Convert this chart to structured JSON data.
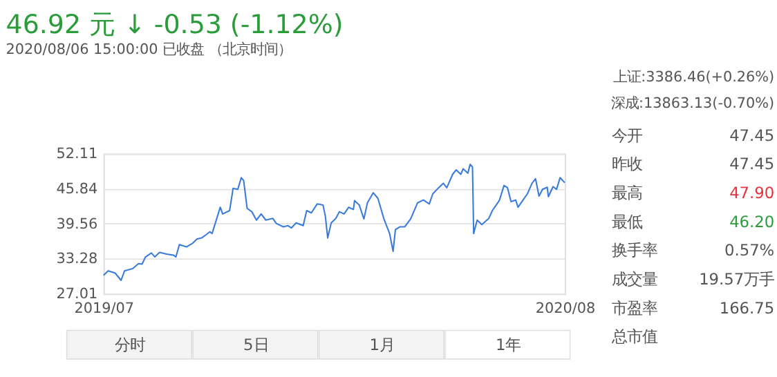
{
  "chart_data": {
    "type": "line",
    "title": "46.92 元 ↓ -0.53 (-1.12%)",
    "subtitle": "2020/08/06 15:00:00  已收盘 （北京时间）",
    "annotations": [
      "上证:3386.46(+0.26%)",
      "深成:13863.13(-0.70%)",
      "今开",
      "47.45",
      "昨收",
      "47.45",
      "最高",
      "47.90",
      "最低",
      "46.20",
      "换手率",
      "0.57%",
      "成交量",
      "19.57万手",
      "市盈率",
      "166.75",
      "总市值",
      "分时",
      "5日",
      "1月",
      "1年"
    ],
    "x": [
      "2019-07-08",
      "2019-07-12",
      "2019-07-18",
      "2019-07-23",
      "2019-07-26",
      "2019-08-02",
      "2019-08-07",
      "2019-08-10",
      "2019-08-13",
      "2019-08-18",
      "2019-08-21",
      "2019-08-25",
      "2019-08-31",
      "2019-09-06",
      "2019-09-08",
      "2019-09-11",
      "2019-09-17",
      "2019-09-22",
      "2019-09-26",
      "2019-09-30",
      "2019-10-04",
      "2019-10-07",
      "2019-10-09",
      "2019-10-13",
      "2019-10-16",
      "2019-10-18",
      "2019-10-24",
      "2019-10-27",
      "2019-10-31",
      "2019-11-03",
      "2019-11-05",
      "2019-11-08",
      "2019-11-12",
      "2019-11-16",
      "2019-11-20",
      "2019-11-24",
      "2019-11-30",
      "2019-12-03",
      "2019-12-09",
      "2019-12-13",
      "2019-12-16",
      "2019-12-20",
      "2019-12-26",
      "2019-12-29",
      "2020-01-02",
      "2020-01-07",
      "2020-01-12",
      "2020-01-14",
      "2020-01-16",
      "2020-01-19",
      "2020-01-23",
      "2020-01-26",
      "2020-01-30",
      "2020-02-03",
      "2020-02-07",
      "2020-02-08",
      "2020-02-12",
      "2020-02-16",
      "2020-02-19",
      "2020-02-24",
      "2020-02-28",
      "2020-03-04",
      "2020-03-09",
      "2020-03-12",
      "2020-03-14",
      "2020-03-18",
      "2020-03-22",
      "2020-03-27",
      "2020-04-02",
      "2020-04-07",
      "2020-04-12",
      "2020-04-15",
      "2020-04-20",
      "2020-04-24",
      "2020-04-27",
      "2020-05-02",
      "2020-05-05",
      "2020-05-09",
      "2020-05-11",
      "2020-05-15",
      "2020-05-17",
      "2020-05-19",
      "2020-05-20",
      "2020-05-23",
      "2020-05-27",
      "2020-06-02",
      "2020-06-05",
      "2020-06-11",
      "2020-06-15",
      "2020-06-18",
      "2020-06-21",
      "2020-06-25",
      "2020-06-27",
      "2020-07-01",
      "2020-07-05",
      "2020-07-09",
      "2020-07-12",
      "2020-07-15",
      "2020-07-18",
      "2020-07-22",
      "2020-07-23",
      "2020-07-27",
      "2020-07-30",
      "2020-08-02",
      "2020-08-06"
    ],
    "series": [
      {
        "color": "#3a7bdc",
        "values": [
          30.3,
          31.1,
          30.7,
          29.4,
          31.1,
          31.5,
          32.4,
          32.3,
          33.6,
          34.3,
          33.6,
          34.4,
          34.1,
          33.9,
          33.6,
          35.8,
          35.4,
          36.0,
          36.8,
          37.0,
          37.6,
          38.1,
          37.8,
          40.5,
          42.5,
          41.3,
          41.9,
          45.9,
          45.7,
          47.8,
          47.3,
          42.3,
          41.7,
          40.2,
          41.3,
          40.2,
          40.5,
          39.6,
          39.0,
          39.2,
          38.8,
          39.7,
          39.2,
          41.9,
          41.5,
          43.1,
          42.9,
          40.9,
          37.0,
          39.7,
          40.5,
          41.7,
          41.3,
          42.5,
          42.1,
          43.7,
          42.9,
          40.4,
          43.3,
          45.1,
          44.1,
          40.5,
          37.8,
          34.6,
          38.5,
          39.0,
          39.0,
          40.4,
          43.3,
          43.8,
          43.1,
          44.9,
          46.0,
          46.8,
          46.0,
          48.4,
          49.2,
          48.4,
          49.4,
          48.6,
          50.2,
          49.7,
          37.8,
          40.2,
          39.4,
          40.5,
          41.9,
          43.7,
          46.4,
          46.0,
          43.5,
          43.8,
          42.5,
          43.7,
          44.9,
          46.8,
          47.6,
          44.5,
          45.7,
          46.1,
          44.4,
          46.2,
          45.7,
          47.8,
          46.9
        ]
      }
    ],
    "xlim": [
      "2019-07-08",
      "2020-08-06"
    ],
    "xticks": [
      {
        "value": "2019-07-08",
        "label": "2019/07"
      },
      {
        "value": "2020-08-06",
        "label": "2020/08"
      }
    ],
    "ylim": [
      27.01,
      52.11
    ],
    "yticks": [
      27.01,
      33.28,
      39.56,
      45.84,
      52.11
    ],
    "grid": "y",
    "marker": "none",
    "line_style": "solid"
  }
}
